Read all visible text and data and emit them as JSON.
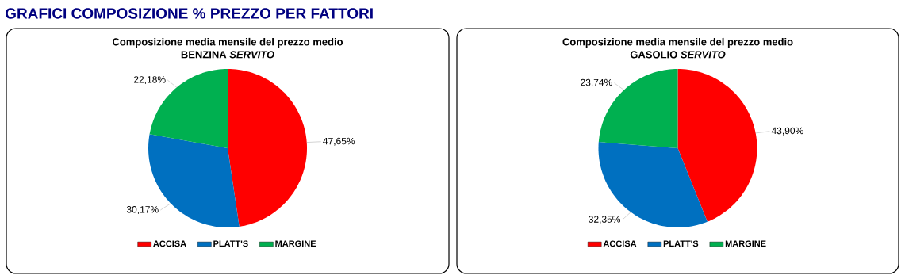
{
  "chart_data": [
    {
      "type": "pie",
      "title": "Composizione media mensile del prezzo medio",
      "subtitle": "BENZINA *SERVITO*",
      "annotations": [
        "GRAFICI COMPOSIZIONE % PREZZO PER FATTORI"
      ],
      "categories": [
        "ACCISA",
        "PLATT'S",
        "MARGINE"
      ],
      "values": [
        47.65,
        30.17,
        22.18
      ],
      "value_labels": [
        "47,65%",
        "30,17%",
        "22,18%"
      ],
      "colors": [
        "#ff0000",
        "#0070c0",
        "#00b050"
      ],
      "legend": "bottom"
    },
    {
      "type": "pie",
      "title": "Composizione media mensile del prezzo medio",
      "subtitle": "GASOLIO *SERVITO*",
      "categories": [
        "ACCISA",
        "PLATT'S",
        "MARGINE"
      ],
      "values": [
        43.9,
        32.35,
        23.74
      ],
      "value_labels": [
        "43,90%",
        "32,35%",
        "23,74%"
      ],
      "colors": [
        "#ff0000",
        "#0070c0",
        "#00b050"
      ],
      "legend": "bottom"
    }
  ]
}
